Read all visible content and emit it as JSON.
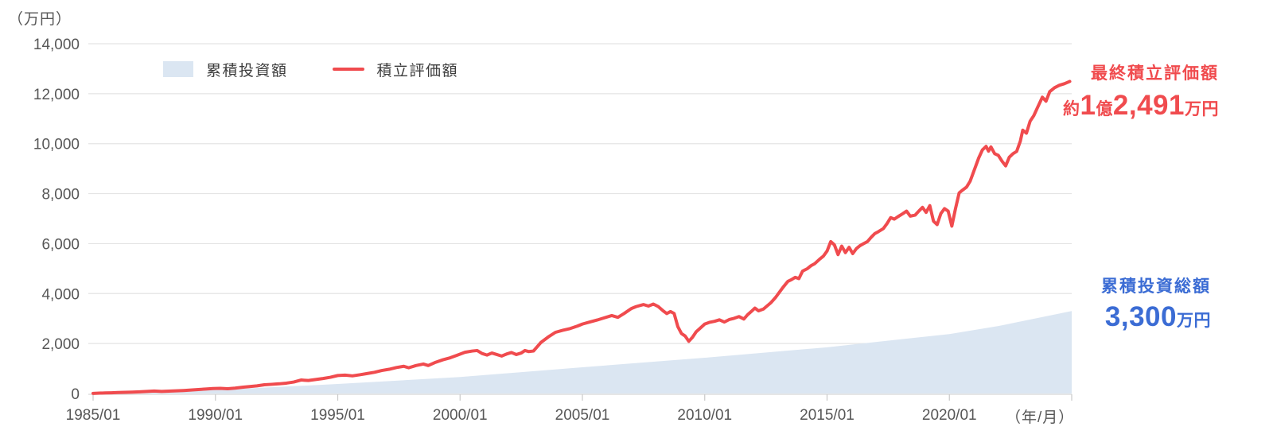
{
  "colors": {
    "grid_line": "#E4E4E4",
    "axis_line": "#D6D6D6",
    "tick": "#C9C9C9",
    "axis_text": "#575757",
    "legend_text": "#3C3C3C",
    "red": "#F04B4E",
    "blue": "#3B6CD4",
    "area_fill": "#DBE6F2"
  },
  "legend": {
    "items": [
      {
        "label": "累積投資額",
        "swatch": "area"
      },
      {
        "label": "積立評価額",
        "swatch": "line"
      }
    ]
  },
  "annotations": {
    "final": {
      "title": "最終積立評価額",
      "color": "#F04B4E",
      "parts": [
        {
          "text": "約",
          "size": "small"
        },
        {
          "text": "1",
          "size": "big"
        },
        {
          "text": "億",
          "size": "small"
        },
        {
          "text": "2,491",
          "size": "big"
        },
        {
          "text": "万円",
          "size": "small"
        }
      ]
    },
    "invested": {
      "title": "累積投資総額",
      "color": "#3B6CD4",
      "parts": [
        {
          "text": "3,300",
          "size": "big"
        },
        {
          "text": "万円",
          "size": "small"
        }
      ]
    }
  },
  "chart_data": {
    "type": "area",
    "title": "",
    "y_unit_label": "（万円）",
    "x_unit_label": "（年/月）",
    "xlim": [
      1985,
      2025
    ],
    "ylim": [
      0,
      14000
    ],
    "grid": true,
    "legend_position": "top-left",
    "y_ticks": [
      {
        "value": 0,
        "label": "0"
      },
      {
        "value": 2000,
        "label": "2,000"
      },
      {
        "value": 4000,
        "label": "4,000"
      },
      {
        "value": 6000,
        "label": "6,000"
      },
      {
        "value": 8000,
        "label": "8,000"
      },
      {
        "value": 10000,
        "label": "10,000"
      },
      {
        "value": 12000,
        "label": "12,000"
      },
      {
        "value": 14000,
        "label": "14,000"
      }
    ],
    "x_ticks": [
      {
        "t": 1985,
        "label": "1985/01"
      },
      {
        "t": 1990,
        "label": "1990/01"
      },
      {
        "t": 1995,
        "label": "1995/01"
      },
      {
        "t": 2000,
        "label": "2000/01"
      },
      {
        "t": 2005,
        "label": "2005/01"
      },
      {
        "t": 2010,
        "label": "2010/01"
      },
      {
        "t": 2015,
        "label": "2015/01"
      },
      {
        "t": 2020,
        "label": "2020/01"
      }
    ],
    "series": [
      {
        "name": "累積投資額",
        "type": "area",
        "color": "#DBE6F2",
        "final_label": "3,300万円",
        "points": [
          [
            1985,
            0
          ],
          [
            1990,
            140
          ],
          [
            1995,
            380
          ],
          [
            2000,
            660
          ],
          [
            2005,
            1050
          ],
          [
            2010,
            1430
          ],
          [
            2015,
            1850
          ],
          [
            2020,
            2380
          ],
          [
            2022,
            2700
          ],
          [
            2025,
            3300
          ]
        ]
      },
      {
        "name": "積立評価額",
        "type": "line",
        "color": "#F04B4E",
        "stroke_width": 4,
        "final_label": "約1億2,491万円",
        "points": [
          [
            1985,
            5
          ],
          [
            1985.25,
            15
          ],
          [
            1985.5,
            22
          ],
          [
            1985.75,
            28
          ],
          [
            1986,
            38
          ],
          [
            1986.3,
            48
          ],
          [
            1986.6,
            55
          ],
          [
            1986.9,
            68
          ],
          [
            1987.2,
            85
          ],
          [
            1987.5,
            98
          ],
          [
            1987.8,
            82
          ],
          [
            1988.1,
            95
          ],
          [
            1988.4,
            106
          ],
          [
            1988.7,
            120
          ],
          [
            1989,
            140
          ],
          [
            1989.3,
            160
          ],
          [
            1989.6,
            178
          ],
          [
            1989.9,
            200
          ],
          [
            1990.2,
            206
          ],
          [
            1990.5,
            190
          ],
          [
            1990.8,
            216
          ],
          [
            1991.1,
            250
          ],
          [
            1991.4,
            280
          ],
          [
            1991.7,
            306
          ],
          [
            1992,
            350
          ],
          [
            1992.3,
            368
          ],
          [
            1992.6,
            388
          ],
          [
            1992.9,
            415
          ],
          [
            1993.2,
            460
          ],
          [
            1993.5,
            540
          ],
          [
            1993.8,
            520
          ],
          [
            1994.1,
            560
          ],
          [
            1994.4,
            600
          ],
          [
            1994.7,
            650
          ],
          [
            1995,
            720
          ],
          [
            1995.3,
            736
          ],
          [
            1995.6,
            706
          ],
          [
            1995.9,
            750
          ],
          [
            1996.2,
            800
          ],
          [
            1996.5,
            850
          ],
          [
            1996.8,
            920
          ],
          [
            1997.1,
            970
          ],
          [
            1997.4,
            1040
          ],
          [
            1997.7,
            1090
          ],
          [
            1997.9,
            1030
          ],
          [
            1998.2,
            1120
          ],
          [
            1998.5,
            1180
          ],
          [
            1998.7,
            1120
          ],
          [
            1999,
            1250
          ],
          [
            1999.3,
            1350
          ],
          [
            1999.6,
            1430
          ],
          [
            1999.9,
            1540
          ],
          [
            2000.2,
            1650
          ],
          [
            2000.5,
            1700
          ],
          [
            2000.7,
            1720
          ],
          [
            2000.9,
            1600
          ],
          [
            2001.1,
            1540
          ],
          [
            2001.3,
            1620
          ],
          [
            2001.5,
            1560
          ],
          [
            2001.7,
            1500
          ],
          [
            2001.9,
            1580
          ],
          [
            2002.1,
            1640
          ],
          [
            2002.3,
            1560
          ],
          [
            2002.5,
            1620
          ],
          [
            2002.65,
            1720
          ],
          [
            2002.8,
            1680
          ],
          [
            2003,
            1700
          ],
          [
            2003.3,
            2040
          ],
          [
            2003.6,
            2260
          ],
          [
            2003.9,
            2450
          ],
          [
            2004.2,
            2530
          ],
          [
            2004.5,
            2600
          ],
          [
            2004.8,
            2700
          ],
          [
            2005,
            2780
          ],
          [
            2005.3,
            2860
          ],
          [
            2005.6,
            2940
          ],
          [
            2005.9,
            3030
          ],
          [
            2006.2,
            3120
          ],
          [
            2006.45,
            3050
          ],
          [
            2006.7,
            3200
          ],
          [
            2007,
            3400
          ],
          [
            2007.2,
            3480
          ],
          [
            2007.5,
            3560
          ],
          [
            2007.7,
            3500
          ],
          [
            2007.9,
            3580
          ],
          [
            2008.1,
            3480
          ],
          [
            2008.3,
            3310
          ],
          [
            2008.45,
            3200
          ],
          [
            2008.6,
            3280
          ],
          [
            2008.75,
            3200
          ],
          [
            2008.9,
            2680
          ],
          [
            2009.05,
            2400
          ],
          [
            2009.2,
            2300
          ],
          [
            2009.35,
            2090
          ],
          [
            2009.5,
            2250
          ],
          [
            2009.65,
            2470
          ],
          [
            2009.8,
            2600
          ],
          [
            2010,
            2780
          ],
          [
            2010.2,
            2850
          ],
          [
            2010.4,
            2890
          ],
          [
            2010.6,
            2950
          ],
          [
            2010.8,
            2860
          ],
          [
            2011,
            2960
          ],
          [
            2011.2,
            3010
          ],
          [
            2011.4,
            3080
          ],
          [
            2011.6,
            2980
          ],
          [
            2011.75,
            3150
          ],
          [
            2011.9,
            3280
          ],
          [
            2012.05,
            3420
          ],
          [
            2012.2,
            3310
          ],
          [
            2012.4,
            3380
          ],
          [
            2012.7,
            3630
          ],
          [
            2012.9,
            3850
          ],
          [
            2013.05,
            4050
          ],
          [
            2013.2,
            4250
          ],
          [
            2013.4,
            4490
          ],
          [
            2013.55,
            4560
          ],
          [
            2013.7,
            4650
          ],
          [
            2013.85,
            4600
          ],
          [
            2014,
            4900
          ],
          [
            2014.2,
            5000
          ],
          [
            2014.35,
            5120
          ],
          [
            2014.5,
            5200
          ],
          [
            2014.7,
            5380
          ],
          [
            2014.85,
            5500
          ],
          [
            2015,
            5700
          ],
          [
            2015.15,
            6080
          ],
          [
            2015.3,
            5950
          ],
          [
            2015.45,
            5560
          ],
          [
            2015.6,
            5900
          ],
          [
            2015.75,
            5640
          ],
          [
            2015.9,
            5850
          ],
          [
            2016.05,
            5600
          ],
          [
            2016.2,
            5800
          ],
          [
            2016.35,
            5920
          ],
          [
            2016.5,
            6000
          ],
          [
            2016.65,
            6080
          ],
          [
            2016.8,
            6250
          ],
          [
            2016.95,
            6400
          ],
          [
            2017.1,
            6480
          ],
          [
            2017.3,
            6600
          ],
          [
            2017.45,
            6800
          ],
          [
            2017.6,
            7040
          ],
          [
            2017.75,
            6980
          ],
          [
            2017.9,
            7080
          ],
          [
            2018.1,
            7200
          ],
          [
            2018.25,
            7300
          ],
          [
            2018.4,
            7100
          ],
          [
            2018.6,
            7140
          ],
          [
            2018.75,
            7300
          ],
          [
            2018.9,
            7450
          ],
          [
            2019.05,
            7250
          ],
          [
            2019.2,
            7520
          ],
          [
            2019.35,
            6900
          ],
          [
            2019.5,
            6760
          ],
          [
            2019.65,
            7200
          ],
          [
            2019.8,
            7400
          ],
          [
            2019.95,
            7300
          ],
          [
            2020.1,
            6700
          ],
          [
            2020.25,
            7400
          ],
          [
            2020.4,
            8030
          ],
          [
            2020.55,
            8150
          ],
          [
            2020.7,
            8260
          ],
          [
            2020.85,
            8500
          ],
          [
            2021,
            8900
          ],
          [
            2021.2,
            9430
          ],
          [
            2021.35,
            9750
          ],
          [
            2021.5,
            9890
          ],
          [
            2021.6,
            9700
          ],
          [
            2021.7,
            9870
          ],
          [
            2021.85,
            9600
          ],
          [
            2022,
            9530
          ],
          [
            2022.15,
            9300
          ],
          [
            2022.3,
            9110
          ],
          [
            2022.45,
            9460
          ],
          [
            2022.6,
            9600
          ],
          [
            2022.75,
            9690
          ],
          [
            2022.9,
            10100
          ],
          [
            2023,
            10540
          ],
          [
            2023.15,
            10420
          ],
          [
            2023.3,
            10900
          ],
          [
            2023.45,
            11120
          ],
          [
            2023.6,
            11440
          ],
          [
            2023.8,
            11860
          ],
          [
            2023.95,
            11700
          ],
          [
            2024.1,
            12080
          ],
          [
            2024.3,
            12240
          ],
          [
            2024.5,
            12340
          ],
          [
            2024.7,
            12400
          ],
          [
            2024.92,
            12491
          ]
        ]
      }
    ]
  }
}
